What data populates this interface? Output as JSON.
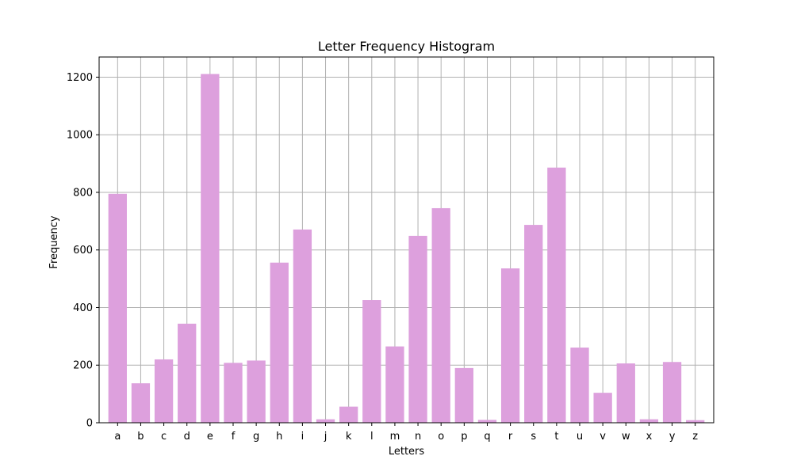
{
  "chart_data": {
    "type": "bar",
    "title": "Letter Frequency Histogram",
    "xlabel": "Letters",
    "ylabel": "Frequency",
    "categories": [
      "a",
      "b",
      "c",
      "d",
      "e",
      "f",
      "g",
      "h",
      "i",
      "j",
      "k",
      "l",
      "m",
      "n",
      "o",
      "p",
      "q",
      "r",
      "s",
      "t",
      "u",
      "v",
      "w",
      "x",
      "y",
      "z"
    ],
    "values": [
      795,
      137,
      220,
      344,
      1211,
      208,
      216,
      556,
      671,
      12,
      56,
      426,
      265,
      649,
      745,
      190,
      10,
      536,
      687,
      886,
      261,
      104,
      206,
      12,
      211,
      9
    ],
    "yticks": [
      0,
      200,
      400,
      600,
      800,
      1000,
      1200
    ],
    "ylim": [
      0,
      1270
    ],
    "grid": true,
    "bar_color": "#dda0dd"
  }
}
